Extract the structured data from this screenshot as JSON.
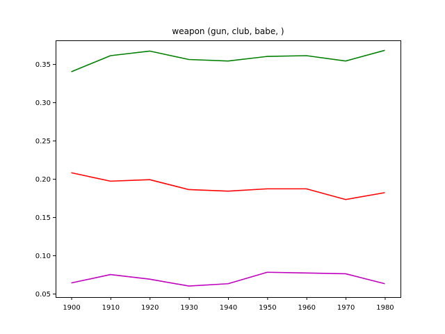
{
  "chart_data": {
    "type": "line",
    "title": "weapon (gun, club, babe, )",
    "xlabel": "",
    "ylabel": "",
    "x": [
      1900,
      1910,
      1920,
      1930,
      1940,
      1950,
      1960,
      1970,
      1980
    ],
    "xticks": [
      "1900",
      "1910",
      "1920",
      "1930",
      "1940",
      "1950",
      "1960",
      "1970",
      "1980"
    ],
    "yticks": [
      "0.05",
      "0.10",
      "0.15",
      "0.20",
      "0.25",
      "0.30",
      "0.35"
    ],
    "ylim": [
      0.0455,
      0.381
    ],
    "xlim": [
      1896,
      1984
    ],
    "grid": false,
    "series": [
      {
        "color": "#008000",
        "values": [
          0.34,
          0.361,
          0.367,
          0.356,
          0.354,
          0.36,
          0.361,
          0.354,
          0.368
        ]
      },
      {
        "color": "#ff0000",
        "values": [
          0.208,
          0.197,
          0.199,
          0.186,
          0.184,
          0.187,
          0.187,
          0.173,
          0.182
        ]
      },
      {
        "color": "#bf00bf",
        "values": [
          0.064,
          0.075,
          0.069,
          0.06,
          0.063,
          0.078,
          0.077,
          0.076,
          0.063
        ]
      }
    ]
  }
}
